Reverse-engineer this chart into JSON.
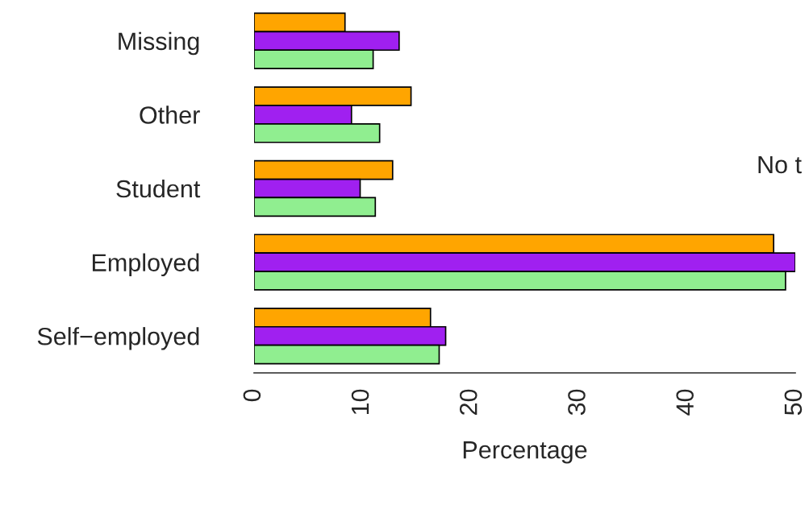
{
  "chart_data": {
    "type": "bar",
    "orientation": "horizontal",
    "categories": [
      "Missing",
      "Other",
      "Student",
      "Employed",
      "Self−employed"
    ],
    "series": [
      {
        "color": "#ffa500",
        "values": [
          8.4,
          14.5,
          12.8,
          48.0,
          16.3
        ]
      },
      {
        "color": "#a020f0",
        "values": [
          13.4,
          9.0,
          9.8,
          50.0,
          17.7
        ]
      },
      {
        "color": "#90ee90",
        "values": [
          11.0,
          11.6,
          11.2,
          49.1,
          17.1
        ]
      }
    ],
    "xlim": [
      0,
      50
    ],
    "xticks": [
      0,
      10,
      20,
      30,
      40,
      50
    ],
    "xlabel": "Percentage",
    "grid": false,
    "legend": false,
    "annotations": [
      "No t"
    ]
  }
}
